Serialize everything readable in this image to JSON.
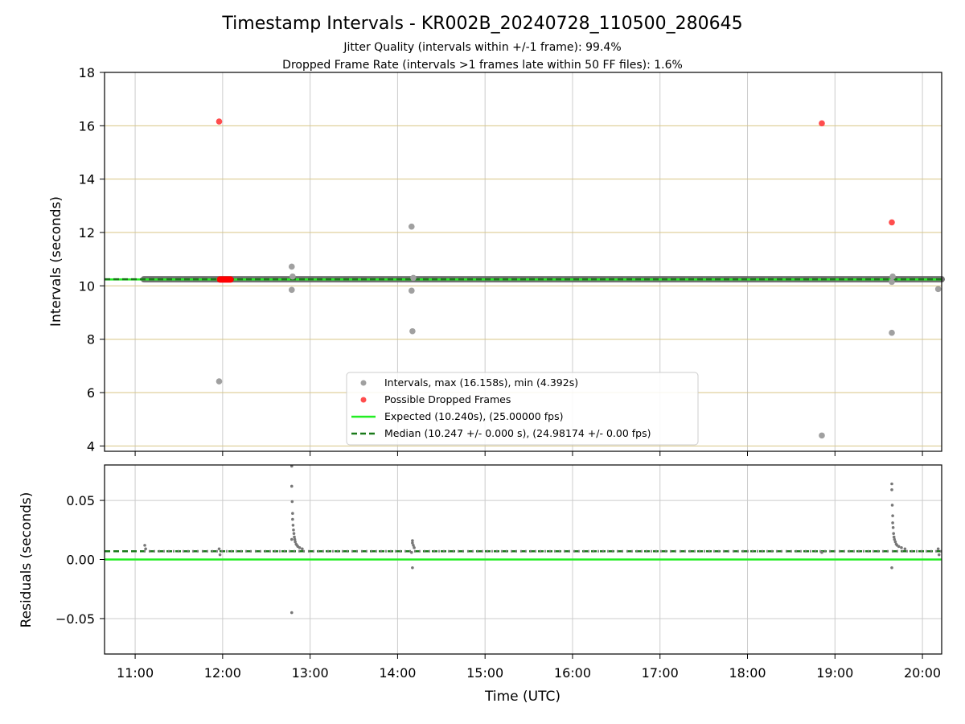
{
  "figure": {
    "title": "Timestamp Intervals - KR002B_20240728_110500_280645",
    "subtitle_1": "Jitter Quality (intervals within +/-1 frame): 99.4%",
    "subtitle_2": "Dropped Frame Rate (intervals >1 frames late within 50 FF files): 1.6%",
    "xlabel": "Time (UTC)"
  },
  "colors": {
    "intervals": "#a0a0a0",
    "dropped": "#ff4d4d",
    "dropped_solid": "#ff0000",
    "expected": "#22ee22",
    "median": "#1a7a1a",
    "residual_points": "#777777",
    "interval_band": "#5a5a5a",
    "hgrid_top": "#d8c685",
    "grid": "#cccccc"
  },
  "chart_data": [
    {
      "type": "scatter",
      "ylabel": "Intervals (seconds)",
      "xlim_hours": [
        10.65,
        20.22
      ],
      "ylim": [
        3.8,
        18
      ],
      "yticks": [
        4,
        6,
        8,
        10,
        12,
        14,
        16,
        18
      ],
      "grid": true,
      "legend_position": "lower-center",
      "legend": [
        {
          "label": "Intervals, max (16.158s), min (4.392s)",
          "kind": "gray-dot"
        },
        {
          "label": "Possible Dropped Frames",
          "kind": "red-dot"
        },
        {
          "label": "Expected (10.240s), (25.00000 fps)",
          "kind": "green-line"
        },
        {
          "label": "Median (10.247 +/- 0.000 s), (24.98174 +/- 0.00 fps)",
          "kind": "green-dashed-line"
        }
      ],
      "expected_value": 10.24,
      "median_value": 10.247,
      "interval_band": {
        "from_hour": 11.1,
        "to_hour": 20.22,
        "y": 10.247
      },
      "series": [
        {
          "name": "Intervals",
          "points": [
            {
              "hour": 11.96,
              "y": 6.42
            },
            {
              "hour": 12.79,
              "y": 10.72
            },
            {
              "hour": 12.79,
              "y": 9.85
            },
            {
              "hour": 12.8,
              "y": 10.35
            },
            {
              "hour": 14.16,
              "y": 12.22
            },
            {
              "hour": 14.16,
              "y": 9.82
            },
            {
              "hour": 14.17,
              "y": 8.3
            },
            {
              "hour": 14.18,
              "y": 10.3
            },
            {
              "hour": 18.85,
              "y": 4.392
            },
            {
              "hour": 19.65,
              "y": 8.24
            },
            {
              "hour": 19.65,
              "y": 10.15
            },
            {
              "hour": 19.66,
              "y": 10.35
            },
            {
              "hour": 20.18,
              "y": 9.88
            }
          ]
        },
        {
          "name": "Possible Dropped Frames",
          "points": [
            {
              "hour": 11.96,
              "y": 16.158
            },
            {
              "hour": 18.85,
              "y": 16.09
            },
            {
              "hour": 19.65,
              "y": 12.38
            }
          ],
          "cluster": {
            "from_hour": 11.97,
            "to_hour": 12.09,
            "y": 10.24
          }
        }
      ]
    },
    {
      "type": "scatter",
      "ylabel": "Residuals (seconds)",
      "xlim_hours": [
        10.65,
        20.22
      ],
      "ylim": [
        -0.08,
        0.08
      ],
      "yticks": [
        -0.05,
        0.0,
        0.05
      ],
      "ytick_labels": [
        "−0.05",
        "0.00",
        "0.05"
      ],
      "xticks": [
        "11:00",
        "12:00",
        "13:00",
        "14:00",
        "15:00",
        "16:00",
        "17:00",
        "18:00",
        "19:00",
        "20:00"
      ],
      "xtick_hours": [
        11,
        12,
        13,
        14,
        15,
        16,
        17,
        18,
        19,
        20
      ],
      "grid": true,
      "expected_value": 0.0,
      "median_value": 0.007,
      "baseline": {
        "from_hour": 11.1,
        "to_hour": 20.22,
        "y": 0.007
      },
      "series": [
        {
          "name": "Residuals",
          "points": [
            {
              "hour": 11.11,
              "y": 0.012
            },
            {
              "hour": 11.12,
              "y": 0.009
            },
            {
              "hour": 11.96,
              "y": 0.009
            },
            {
              "hour": 11.97,
              "y": 0.004
            },
            {
              "hour": 12.79,
              "y": 0.079
            },
            {
              "hour": 12.79,
              "y": 0.062
            },
            {
              "hour": 12.795,
              "y": 0.049
            },
            {
              "hour": 12.8,
              "y": 0.039
            },
            {
              "hour": 12.8,
              "y": 0.034
            },
            {
              "hour": 12.805,
              "y": 0.029
            },
            {
              "hour": 12.81,
              "y": 0.025
            },
            {
              "hour": 12.815,
              "y": 0.022
            },
            {
              "hour": 12.82,
              "y": 0.019
            },
            {
              "hour": 12.825,
              "y": 0.017
            },
            {
              "hour": 12.83,
              "y": 0.015
            },
            {
              "hour": 12.84,
              "y": 0.013
            },
            {
              "hour": 12.85,
              "y": 0.012
            },
            {
              "hour": 12.86,
              "y": 0.011
            },
            {
              "hour": 12.88,
              "y": 0.01
            },
            {
              "hour": 12.91,
              "y": 0.009
            },
            {
              "hour": 12.79,
              "y": 0.017
            },
            {
              "hour": 12.79,
              "y": -0.045
            },
            {
              "hour": 14.17,
              "y": 0.016
            },
            {
              "hour": 14.17,
              "y": 0.014
            },
            {
              "hour": 14.18,
              "y": 0.012
            },
            {
              "hour": 14.19,
              "y": 0.01
            },
            {
              "hour": 14.16,
              "y": 0.006
            },
            {
              "hour": 14.17,
              "y": -0.007
            },
            {
              "hour": 18.85,
              "y": 0.006
            },
            {
              "hour": 19.65,
              "y": 0.064
            },
            {
              "hour": 19.65,
              "y": 0.059
            },
            {
              "hour": 19.655,
              "y": 0.046
            },
            {
              "hour": 19.66,
              "y": 0.037
            },
            {
              "hour": 19.66,
              "y": 0.031
            },
            {
              "hour": 19.665,
              "y": 0.027
            },
            {
              "hour": 19.67,
              "y": 0.022
            },
            {
              "hour": 19.675,
              "y": 0.019
            },
            {
              "hour": 19.68,
              "y": 0.017
            },
            {
              "hour": 19.69,
              "y": 0.015
            },
            {
              "hour": 19.7,
              "y": 0.013
            },
            {
              "hour": 19.71,
              "y": 0.012
            },
            {
              "hour": 19.73,
              "y": 0.011
            },
            {
              "hour": 19.76,
              "y": 0.01
            },
            {
              "hour": 19.8,
              "y": 0.009
            },
            {
              "hour": 19.65,
              "y": -0.007
            },
            {
              "hour": 20.18,
              "y": 0.009
            },
            {
              "hour": 20.19,
              "y": 0.004
            }
          ]
        }
      ]
    }
  ]
}
